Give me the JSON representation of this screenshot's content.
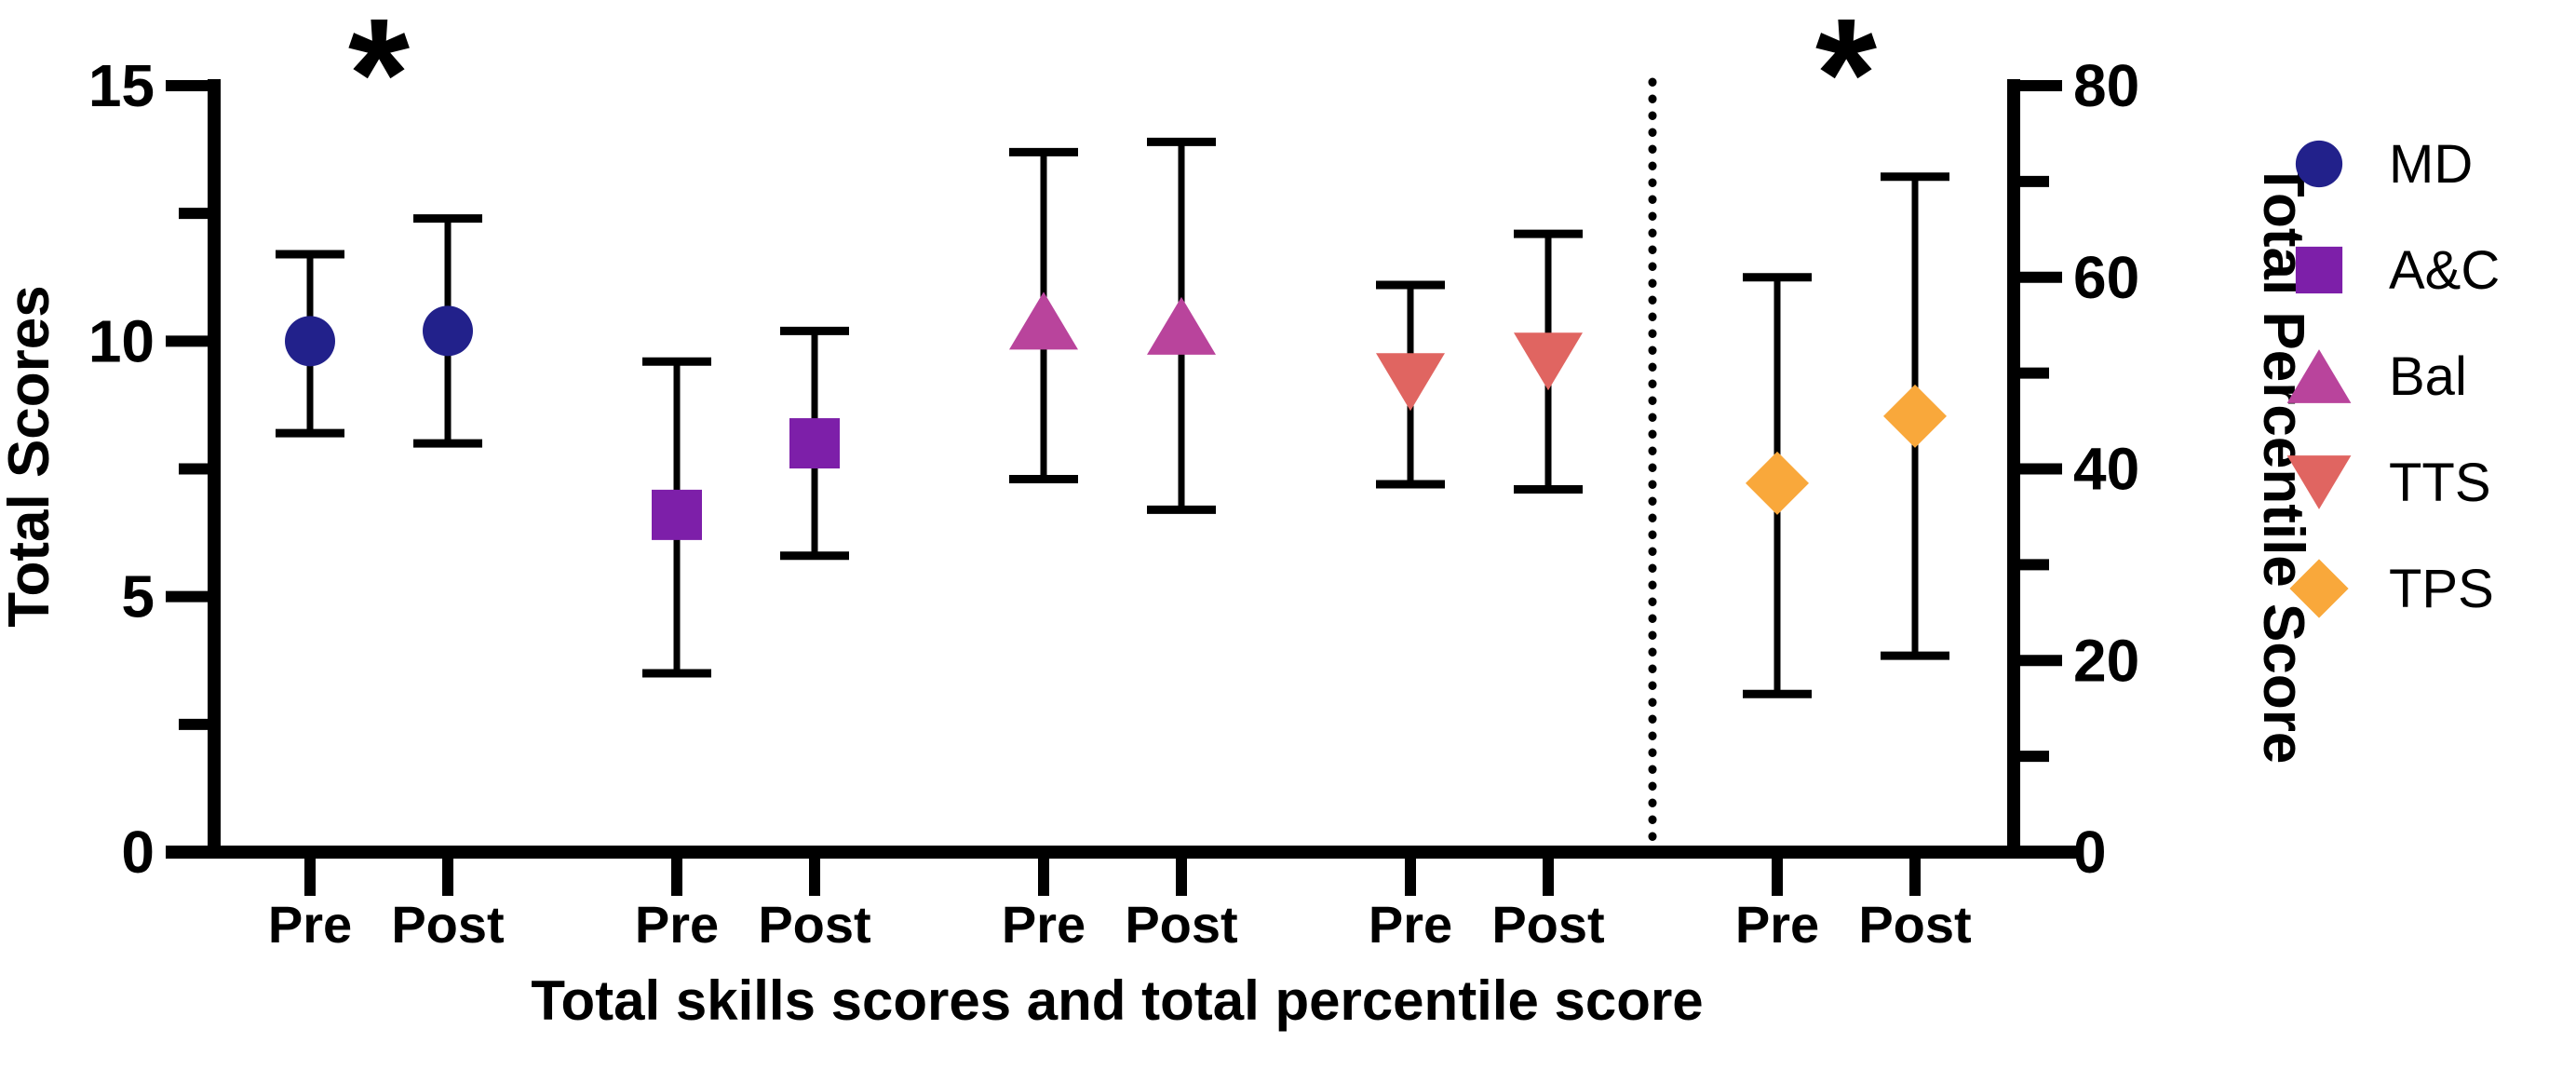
{
  "figure": {
    "kind": "pre-post scatter with error bars (two y axes)",
    "background_color": "#ffffff",
    "significance_symbol": "*",
    "axis_color": "#000000"
  },
  "chart_data": {
    "type": "scatter",
    "title": "",
    "xlabel": "Total skills scores and total percentile score",
    "left_axis": {
      "title": "Total Scores",
      "min": 0,
      "max": 15,
      "major_ticks": [
        0,
        5,
        10,
        15
      ],
      "minor_ticks": [
        2.5,
        7.5,
        12.5
      ]
    },
    "right_axis": {
      "title": "Total Percentile Score",
      "min": 0,
      "max": 80,
      "major_ticks": [
        0,
        20,
        40,
        60,
        80
      ],
      "minor_ticks": [
        10,
        30,
        50,
        70
      ]
    },
    "pair_labels": [
      "Pre",
      "Post"
    ],
    "separator": {
      "style": "dotted-vertical-line",
      "between_groups": [
        "TTS",
        "TPS"
      ]
    },
    "groups": [
      {
        "name": "MD",
        "marker": "circle",
        "color": "#22218B",
        "axis": "left",
        "significant": true,
        "pre": {
          "mean": 10.0,
          "err_low": 8.2,
          "err_high": 11.7
        },
        "post": {
          "mean": 10.2,
          "err_low": 8.0,
          "err_high": 12.4
        }
      },
      {
        "name": "A&C",
        "marker": "square",
        "color": "#7D1FA9",
        "axis": "left",
        "significant": false,
        "pre": {
          "mean": 6.6,
          "err_low": 3.5,
          "err_high": 9.6
        },
        "post": {
          "mean": 8.0,
          "err_low": 5.8,
          "err_high": 10.2
        }
      },
      {
        "name": "Bal",
        "marker": "triangle-up",
        "color": "#B9449C",
        "axis": "left",
        "significant": false,
        "pre": {
          "mean": 10.4,
          "err_low": 7.3,
          "err_high": 13.7
        },
        "post": {
          "mean": 10.3,
          "err_low": 6.7,
          "err_high": 13.9
        }
      },
      {
        "name": "TTS",
        "marker": "triangle-down",
        "color": "#E06561",
        "axis": "left",
        "significant": false,
        "pre": {
          "mean": 9.2,
          "err_low": 7.2,
          "err_high": 11.1
        },
        "post": {
          "mean": 9.6,
          "err_low": 7.1,
          "err_high": 12.1
        }
      },
      {
        "name": "TPS",
        "marker": "diamond",
        "color": "#F9A83B",
        "axis": "right",
        "significant": true,
        "pre": {
          "mean": 38.5,
          "err_low": 16.5,
          "err_high": 60.0
        },
        "post": {
          "mean": 45.5,
          "err_low": 20.5,
          "err_high": 70.5
        }
      }
    ]
  },
  "legend": {
    "position": "right",
    "entries": [
      {
        "label": "MD",
        "marker": "circle",
        "color": "#22218B"
      },
      {
        "label": "A&C",
        "marker": "square",
        "color": "#7D1FA9"
      },
      {
        "label": "Bal",
        "marker": "triangle-up",
        "color": "#B9449C"
      },
      {
        "label": "TTS",
        "marker": "triangle-down",
        "color": "#E06561"
      },
      {
        "label": "TPS",
        "marker": "diamond",
        "color": "#F9A83B"
      }
    ]
  }
}
